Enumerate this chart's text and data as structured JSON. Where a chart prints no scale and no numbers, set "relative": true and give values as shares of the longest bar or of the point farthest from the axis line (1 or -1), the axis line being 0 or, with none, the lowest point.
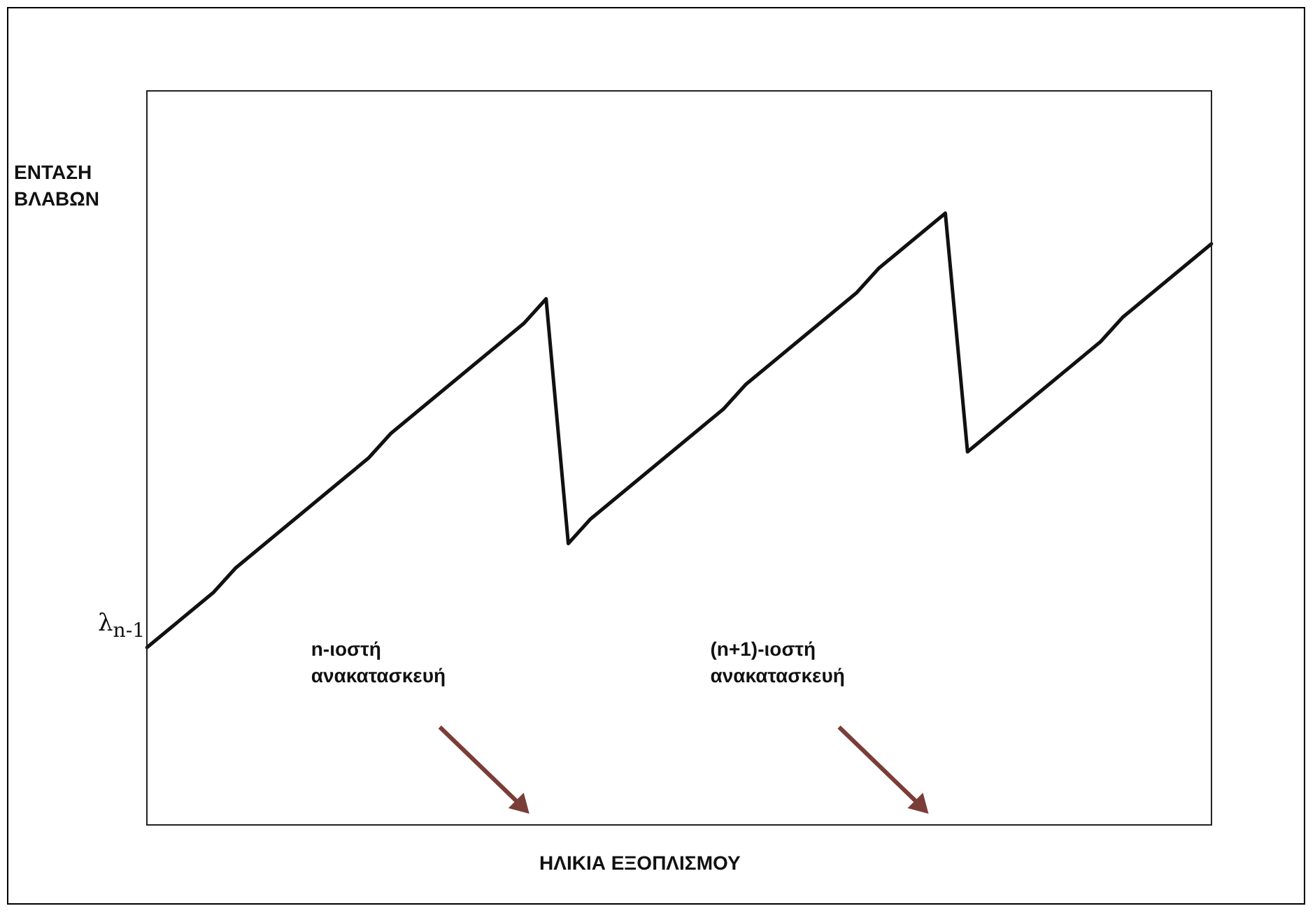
{
  "chart_data": {
    "type": "line",
    "relative": true,
    "xlabel": "ΗΛΙΚΙΑ ΕΞΟΠΛΙΣΜΟΥ",
    "ylabel": "ΕΝΤΑΣΗ ΒΛΑΒΩΝ",
    "categories": [
      null,
      null,
      null,
      null,
      null,
      null,
      null,
      null,
      null,
      null,
      null,
      null,
      null,
      null,
      null,
      null,
      null,
      null,
      null,
      null,
      null,
      null,
      null,
      null,
      null,
      null,
      null,
      null,
      null,
      null,
      null,
      null,
      null,
      null,
      null,
      null,
      null,
      null,
      null,
      null,
      null,
      null,
      null,
      null,
      null,
      null,
      null,
      null,
      null
    ],
    "series": [
      {
        "color": "#111111",
        "values": [
          0.29,
          0.32,
          0.35,
          0.38,
          0.42,
          0.45,
          0.48,
          0.51,
          0.54,
          0.57,
          0.6,
          0.64,
          0.67,
          0.7,
          0.73,
          0.76,
          0.79,
          0.82,
          0.86,
          0.46,
          0.5,
          0.53,
          0.56,
          0.59,
          0.62,
          0.65,
          0.68,
          0.72,
          0.75,
          0.78,
          0.81,
          0.84,
          0.87,
          0.91,
          0.94,
          0.97,
          1,
          0.61,
          0.64,
          0.67,
          0.7,
          0.73,
          0.76,
          0.79,
          0.83,
          0.86,
          0.89,
          0.92,
          0.95
        ]
      }
    ],
    "annotations": [
      "λ$_{n-1}$",
      "n-ιοστή ανακατασκευή",
      "(n+1)-ιοστή ανακατασκευή"
    ],
    "grid": false,
    "legend": false,
    "marker": "none",
    "line_style": "solid"
  }
}
